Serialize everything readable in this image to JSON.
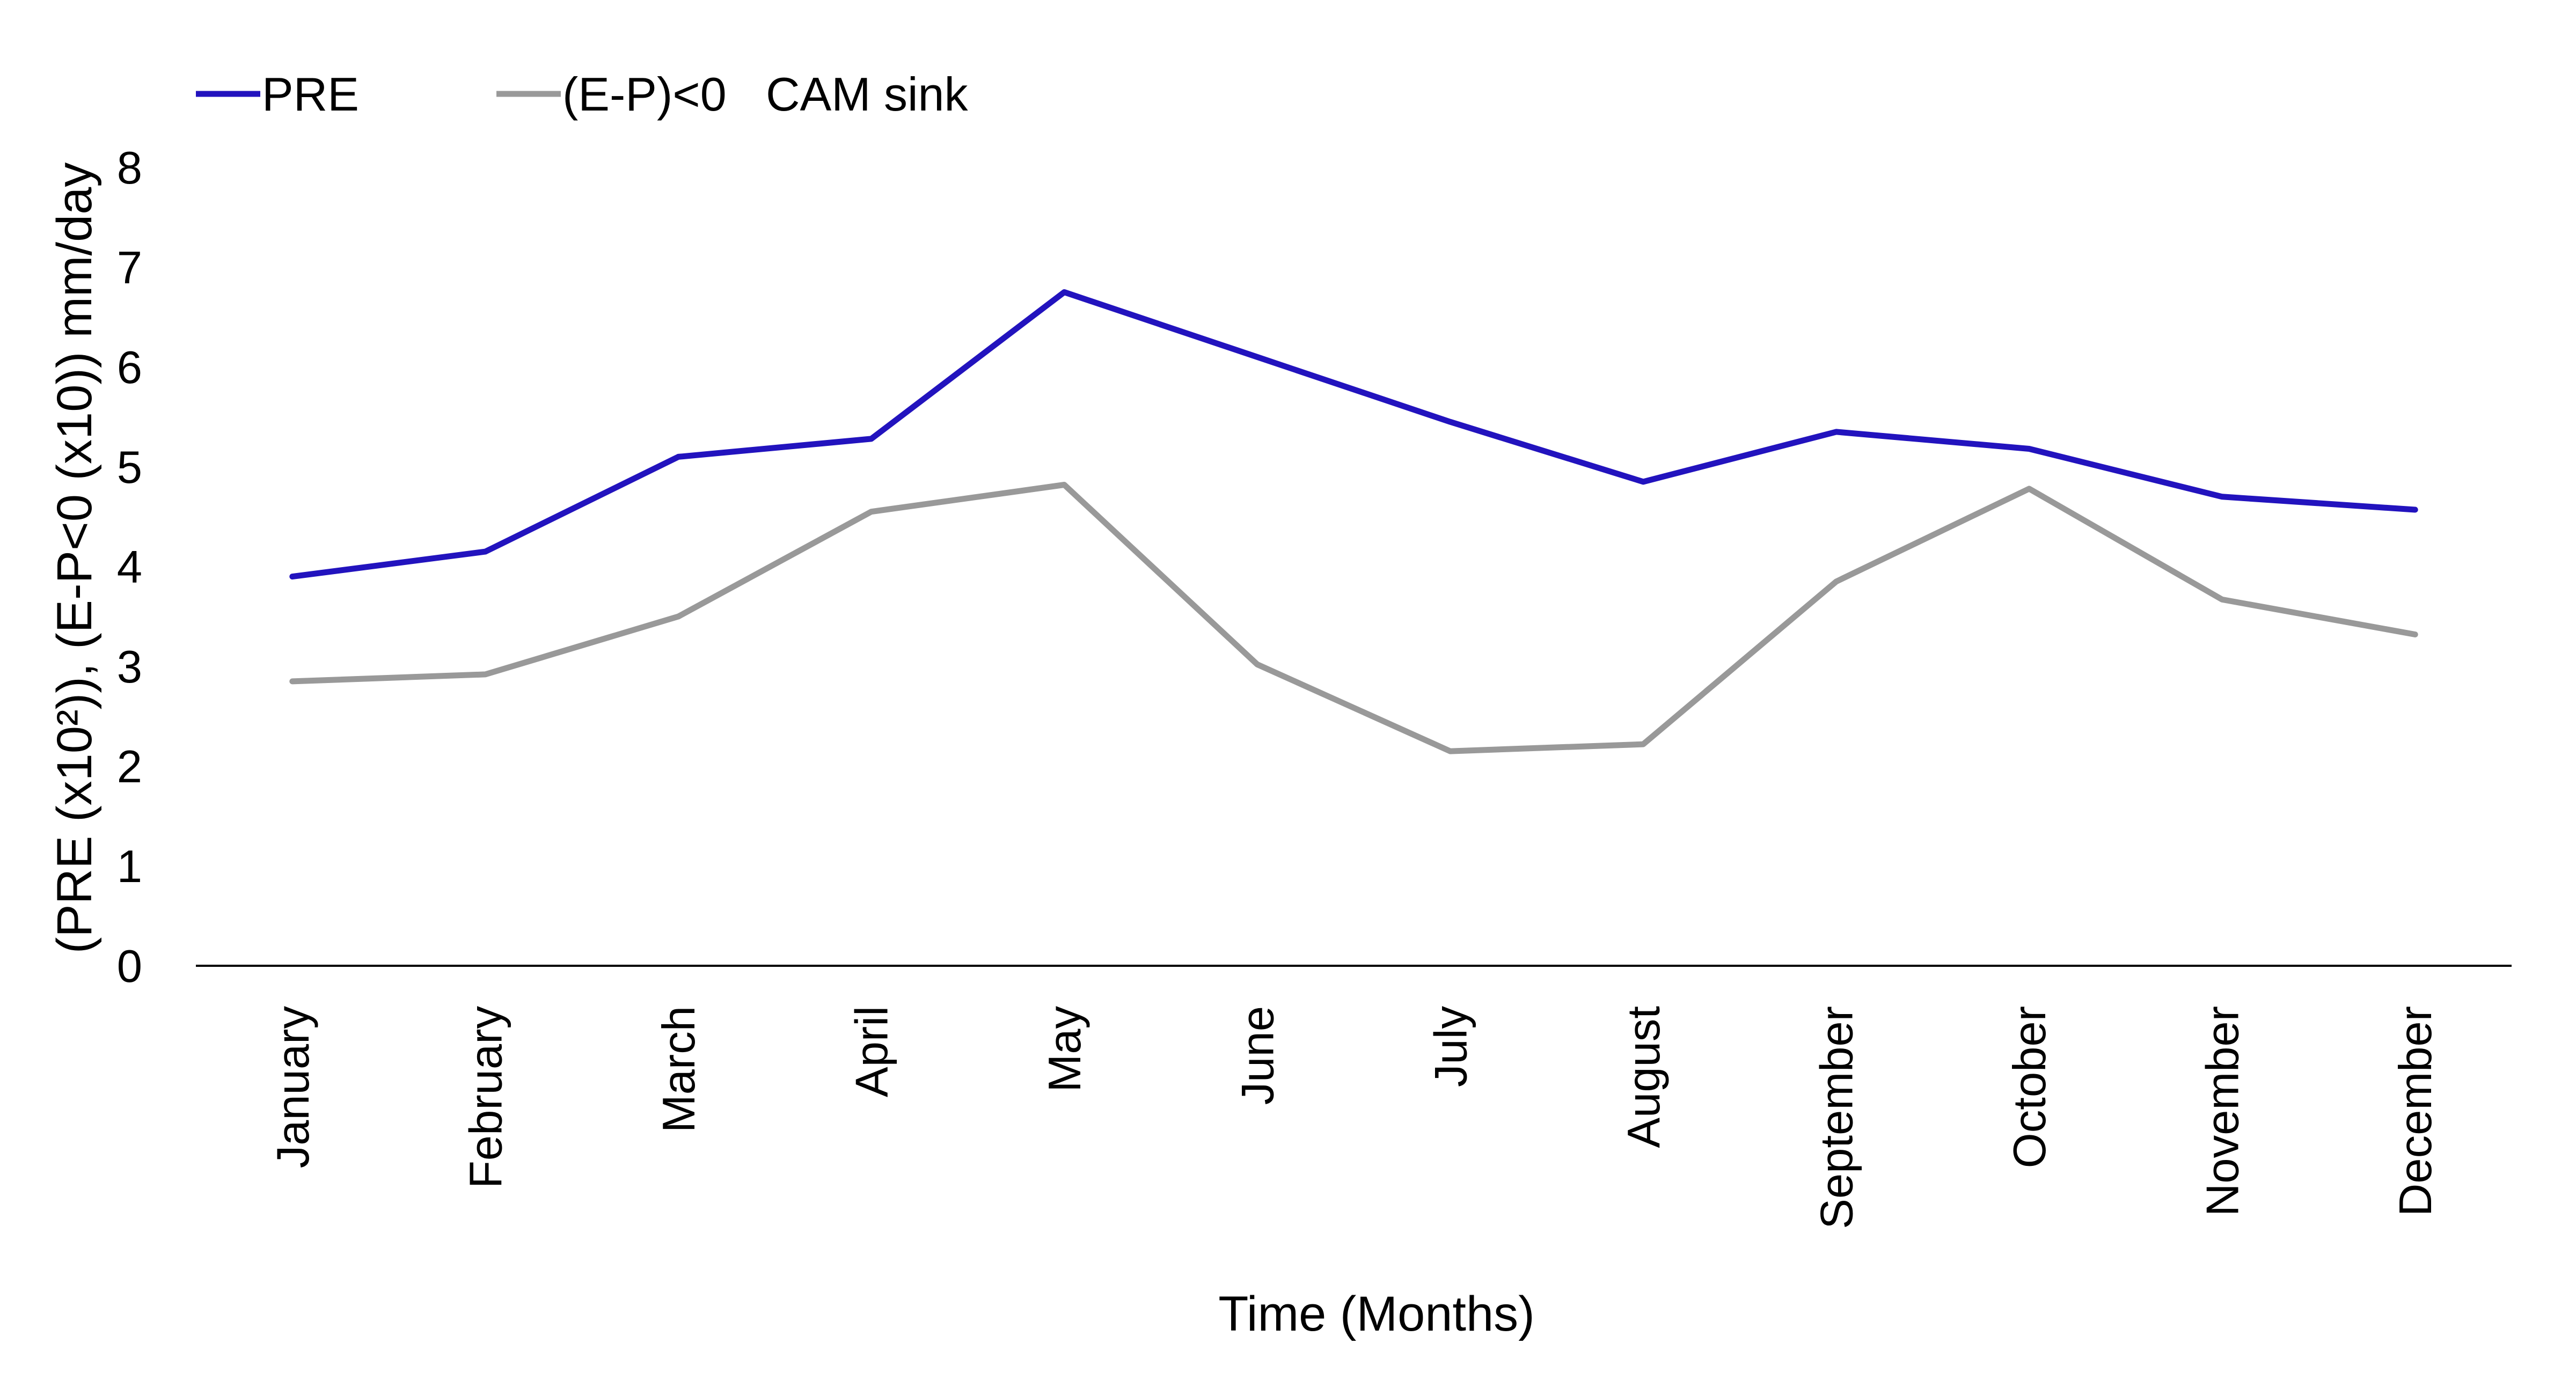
{
  "chart_data": {
    "type": "line",
    "title": "",
    "xlabel": "Time (Months)",
    "ylabel": "(PRE (x10²)), (E-P<0 (x10)) mm/day",
    "ylim": [
      0,
      8
    ],
    "yticks": [
      "0",
      "1",
      "2",
      "3",
      "4",
      "5",
      "6",
      "7",
      "8"
    ],
    "grid": false,
    "legend_position": "top-left",
    "categories": [
      "January",
      "February",
      "March",
      "April",
      "May",
      "June",
      "July",
      "August",
      "September",
      "October",
      "November",
      "December"
    ],
    "series": [
      {
        "name": "PRE",
        "color": "#2213BE",
        "values": [
          3.9,
          4.15,
          5.1,
          5.28,
          6.75,
          6.1,
          5.45,
          4.85,
          5.35,
          5.18,
          4.7,
          4.57
        ]
      },
      {
        "name": "(E-P)<0   CAM sink",
        "color": "#999999",
        "values": [
          2.85,
          2.92,
          3.5,
          4.55,
          4.82,
          3.02,
          2.15,
          2.22,
          3.85,
          4.78,
          3.67,
          3.32
        ]
      }
    ]
  }
}
